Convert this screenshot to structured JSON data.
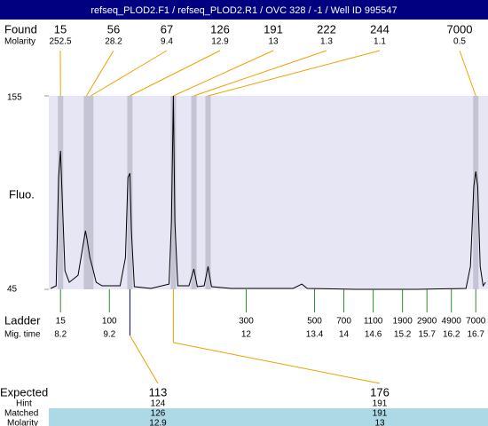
{
  "header": {
    "title": "refseq_PLOD2.F1 / refseq_PLOD2.R1 / OVC 328 / -1 / Well ID 995547"
  },
  "found": {
    "label": "Found",
    "molarity_label": "Molarity",
    "peaks": [
      {
        "size": 15,
        "molarity": 252.5,
        "time": 8.2
      },
      {
        "size": 56,
        "molarity": 28.2,
        "time": 8.73
      },
      {
        "size": 67,
        "molarity": 9.4,
        "time": 8.82
      },
      {
        "size": 126,
        "molarity": 12.9,
        "time": 9.62
      },
      {
        "size": 191,
        "molarity": 13,
        "time": 10.51
      },
      {
        "size": 222,
        "molarity": 1.3,
        "time": 10.93
      },
      {
        "size": 244,
        "molarity": 1.1,
        "time": 11.22
      },
      {
        "size": 7000,
        "molarity": 0.5,
        "time": 16.7
      }
    ]
  },
  "plot": {
    "ylabel": "Fluo.",
    "ylim": [
      45,
      155
    ],
    "yticks": [
      45,
      155
    ],
    "xlim": [
      7.96,
      16.95
    ],
    "trace": {
      "x": [
        8.0,
        8.11,
        8.16,
        8.2,
        8.24,
        8.29,
        8.38,
        8.56,
        8.65,
        8.71,
        8.74,
        8.8,
        8.85,
        8.93,
        9.05,
        9.42,
        9.53,
        9.58,
        9.62,
        9.65,
        9.71,
        10.05,
        10.42,
        10.47,
        10.51,
        10.54,
        10.6,
        10.83,
        10.93,
        11.0,
        11.14,
        11.22,
        11.29,
        11.69,
        12.96,
        13.14,
        13.25,
        14.23,
        15.5,
        16.5,
        16.59,
        16.66,
        16.7,
        16.74,
        16.79,
        16.85,
        16.9
      ],
      "y": [
        45.5,
        47,
        108.6,
        123.7,
        93.4,
        55.6,
        49,
        53,
        68.2,
        78.3,
        74,
        63,
        58,
        49,
        47,
        47,
        63,
        108.6,
        111,
        78.3,
        46.5,
        45.5,
        48,
        83.3,
        155,
        83.3,
        47,
        47,
        56.6,
        46.5,
        47,
        58,
        46.5,
        45.5,
        45.5,
        48,
        45.5,
        45,
        45,
        45.5,
        58,
        103.6,
        112,
        103.6,
        58,
        47,
        49
      ]
    }
  },
  "ladder": {
    "label": "Ladder",
    "time_label": "Mig. time",
    "sizes": [
      15,
      100,
      300,
      500,
      700,
      1100,
      1900,
      2900,
      4900,
      7000
    ],
    "times": [
      8.2,
      9.2,
      12,
      13.4,
      14,
      14.6,
      15.2,
      15.7,
      16.2,
      16.7
    ]
  },
  "expected": {
    "labels": {
      "expected": "Expected",
      "hint": "Hint",
      "matched": "Matched",
      "molarity": "Molarity"
    },
    "rows": [
      {
        "expected": 113,
        "hint": 124,
        "matched": 126,
        "molarity": 12.9
      },
      {
        "expected": 176,
        "hint": 191,
        "matched": 191,
        "molarity": 13
      }
    ]
  }
}
